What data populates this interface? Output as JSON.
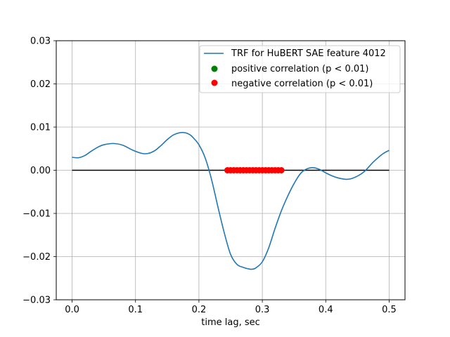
{
  "chart_data": {
    "type": "line",
    "xlabel": "time lag, sec",
    "ylabel": "",
    "xlim": [
      -0.025,
      0.525
    ],
    "ylim": [
      -0.03,
      0.03
    ],
    "xticks": [
      0.0,
      0.1,
      0.2,
      0.3,
      0.4,
      0.5
    ],
    "xtick_labels": [
      "0.0",
      "0.1",
      "0.2",
      "0.3",
      "0.4",
      "0.5"
    ],
    "yticks": [
      -0.03,
      -0.02,
      -0.01,
      0.0,
      0.01,
      0.02,
      0.03
    ],
    "ytick_labels": [
      "−0.03",
      "−0.02",
      "−0.01",
      "0.00",
      "0.01",
      "0.02",
      "0.03"
    ],
    "grid": true,
    "legend_position": "top-right",
    "colors": {
      "trf_line": "#1f77b4",
      "zero_line": "#000000",
      "positive": "#008000",
      "negative": "#ff0000",
      "grid": "#b0b0b0"
    },
    "series": [
      {
        "name": "TRF for HuBERT SAE feature 4012",
        "x": [
          0.0,
          0.01,
          0.02,
          0.03,
          0.04,
          0.05,
          0.065,
          0.08,
          0.095,
          0.11,
          0.12,
          0.13,
          0.14,
          0.15,
          0.16,
          0.17,
          0.178,
          0.185,
          0.19,
          0.2,
          0.21,
          0.22,
          0.23,
          0.24,
          0.25,
          0.26,
          0.27,
          0.28,
          0.285,
          0.29,
          0.3,
          0.31,
          0.32,
          0.33,
          0.34,
          0.35,
          0.36,
          0.37,
          0.38,
          0.39,
          0.4,
          0.41,
          0.42,
          0.433,
          0.445,
          0.46,
          0.475,
          0.49,
          0.5
        ],
        "y": [
          0.003,
          0.0029,
          0.0034,
          0.0044,
          0.0053,
          0.0059,
          0.0062,
          0.0058,
          0.0047,
          0.0039,
          0.0039,
          0.0045,
          0.0057,
          0.0071,
          0.0082,
          0.0087,
          0.0087,
          0.0083,
          0.0077,
          0.0059,
          0.0028,
          -0.0022,
          -0.0085,
          -0.0145,
          -0.0195,
          -0.0218,
          -0.0225,
          -0.0229,
          -0.0229,
          -0.0226,
          -0.0212,
          -0.018,
          -0.0135,
          -0.0094,
          -0.006,
          -0.0031,
          -0.0008,
          0.0003,
          0.0006,
          0.0002,
          -0.0006,
          -0.0013,
          -0.0018,
          -0.0021,
          -0.0017,
          -0.0004,
          0.0019,
          0.0038,
          0.0046
        ]
      },
      {
        "name": "positive correlation (p < 0.01)",
        "x": [],
        "y": []
      },
      {
        "name": "negative correlation (p < 0.01)",
        "x": [
          0.245,
          0.25,
          0.255,
          0.26,
          0.265,
          0.27,
          0.275,
          0.28,
          0.285,
          0.29,
          0.295,
          0.3,
          0.305,
          0.31,
          0.315,
          0.32,
          0.325,
          0.33
        ],
        "y": [
          0,
          0,
          0,
          0,
          0,
          0,
          0,
          0,
          0,
          0,
          0,
          0,
          0,
          0,
          0,
          0,
          0,
          0
        ]
      }
    ],
    "zero_line": {
      "x": [
        0.0,
        0.5
      ],
      "y": 0.0
    }
  }
}
